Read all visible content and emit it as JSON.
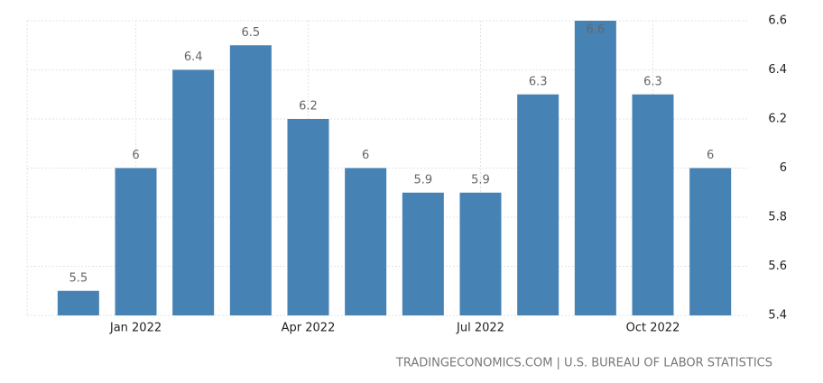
{
  "chart_data": {
    "type": "bar",
    "categories": [
      null,
      "Jan 2022",
      null,
      null,
      "Apr 2022",
      null,
      null,
      "Jul 2022",
      null,
      null,
      "Oct 2022",
      null
    ],
    "values": [
      5.5,
      6,
      6.4,
      6.5,
      6.2,
      6,
      5.9,
      5.9,
      6.3,
      6.6,
      6.3,
      6
    ],
    "color": "#4682b4",
    "ylim": [
      5.4,
      6.6
    ],
    "yticks": [
      5.4,
      5.6,
      5.8,
      6,
      6.2,
      6.4,
      6.6
    ],
    "grid": true,
    "source": "TRADINGECONOMICS.COM | U.S. BUREAU OF LABOR STATISTICS"
  }
}
